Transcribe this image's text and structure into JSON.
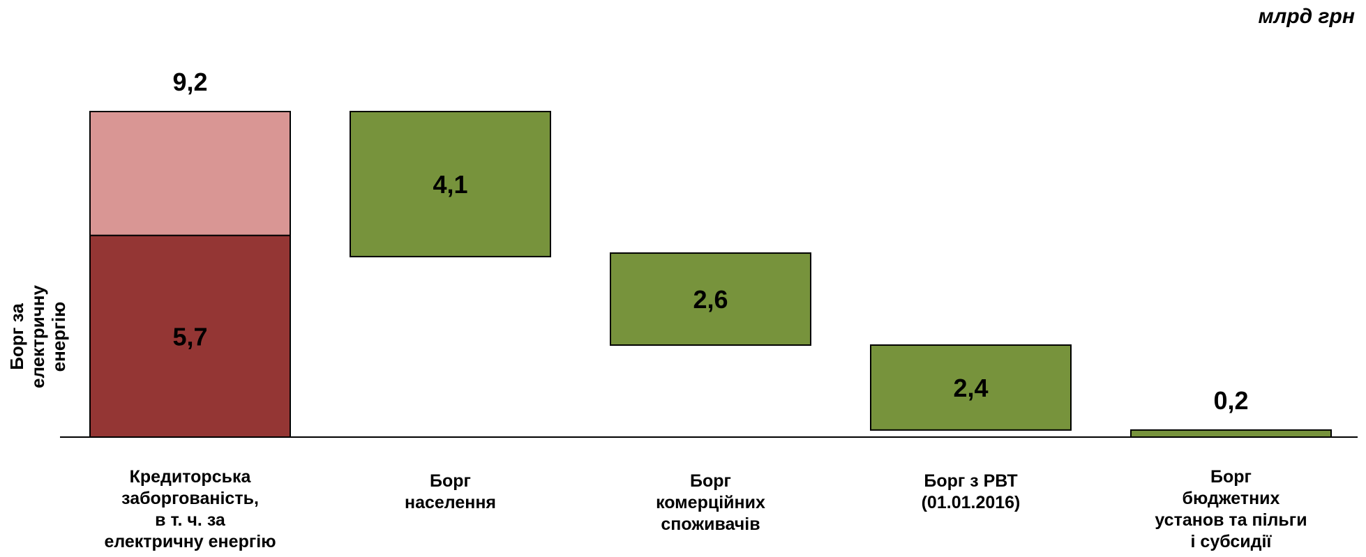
{
  "chart_data": {
    "type": "bar",
    "subtype": "waterfall",
    "unit": "млрд грн",
    "side_label": [
      "Борг за",
      "електричну",
      "енергію"
    ],
    "categories": [
      [
        "Кредиторська",
        "заборгованість,",
        "в т. ч. за",
        "електричну енергію"
      ],
      [
        "Борг",
        "населення"
      ],
      [
        "Борг",
        "комерційних",
        "споживачів"
      ],
      [
        "Борг з РВТ",
        "(01.01.2016)"
      ],
      [
        "Борг",
        "бюджетних",
        "установ та пільги",
        "і субсидії"
      ]
    ],
    "bars": [
      {
        "label": "9,2",
        "value": 9.2,
        "base": 0,
        "segments": [
          {
            "label": "5,7",
            "value": 5.7,
            "color": "#943634"
          },
          {
            "label": "",
            "value": 3.5,
            "color": "#d99694"
          }
        ],
        "label_position": "above"
      },
      {
        "label": "4,1",
        "value": 4.1,
        "base": 5.1,
        "color": "#77933c",
        "label_position": "inside"
      },
      {
        "label": "2,6",
        "value": 2.6,
        "base": 2.6,
        "color": "#77933c",
        "label_position": "inside"
      },
      {
        "label": "2,4",
        "value": 2.4,
        "base": 0.2,
        "color": "#77933c",
        "label_position": "inside"
      },
      {
        "label": "0,2",
        "value": 0.2,
        "base": 0,
        "color": "#77933c",
        "label_position": "above"
      }
    ],
    "ylim": [
      0,
      9.3
    ],
    "grid": false,
    "legend": "none"
  }
}
